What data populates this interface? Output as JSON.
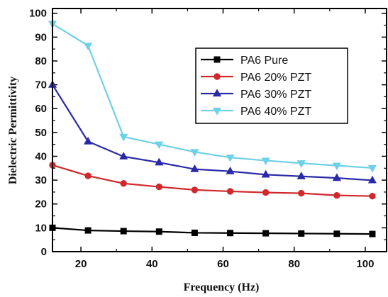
{
  "chart_data": {
    "type": "line",
    "title": "",
    "xlabel": "Frequency (Hz)",
    "ylabel": "Dielectric Permittivity",
    "xlim": [
      12,
      106
    ],
    "ylim": [
      0,
      102
    ],
    "x_ticks": [
      20,
      40,
      60,
      80,
      100
    ],
    "y_ticks": [
      0,
      10,
      20,
      30,
      40,
      50,
      60,
      70,
      80,
      90,
      100
    ],
    "grid": false,
    "legend_position": "upper-right",
    "x": [
      12,
      22,
      32,
      42,
      52,
      62,
      72,
      82,
      92,
      102
    ],
    "series": [
      {
        "name": "PA6 Pure",
        "color": "#000000",
        "marker": "square",
        "values": [
          10.0,
          8.9,
          8.6,
          8.4,
          7.9,
          7.8,
          7.7,
          7.6,
          7.5,
          7.4
        ]
      },
      {
        "name": "PA6 20% PZT",
        "color": "#d0282b",
        "marker": "circle",
        "values": [
          36.3,
          31.8,
          28.6,
          27.2,
          25.9,
          25.3,
          24.8,
          24.5,
          23.6,
          23.3
        ]
      },
      {
        "name": "PA6 30% PZT",
        "color": "#2a2aa8",
        "marker": "triangle-up",
        "values": [
          70.0,
          46.2,
          39.9,
          37.4,
          34.6,
          33.7,
          32.3,
          31.6,
          30.9,
          29.9
        ]
      },
      {
        "name": "PA6 40% PZT",
        "color": "#6fd0e6",
        "marker": "triangle-down",
        "values": [
          95.6,
          86.4,
          48.2,
          45.0,
          41.8,
          39.5,
          38.2,
          37.1,
          36.1,
          35.1
        ]
      }
    ]
  }
}
